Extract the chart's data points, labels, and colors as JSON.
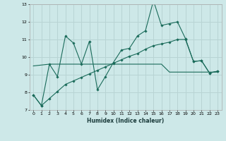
{
  "xlabel": "Humidex (Indice chaleur)",
  "xlim": [
    -0.5,
    23.5
  ],
  "ylim": [
    7,
    13
  ],
  "yticks": [
    7,
    8,
    9,
    10,
    11,
    12,
    13
  ],
  "xticks": [
    0,
    1,
    2,
    3,
    4,
    5,
    6,
    7,
    8,
    9,
    10,
    11,
    12,
    13,
    14,
    15,
    16,
    17,
    18,
    19,
    20,
    21,
    22,
    23
  ],
  "bg_color": "#cde8e8",
  "grid_color": "#b8d4d4",
  "line_color": "#1a6b5a",
  "line1_x": [
    0,
    1,
    2,
    3,
    4,
    5,
    6,
    7,
    8,
    9,
    10,
    11,
    12,
    13,
    14,
    15,
    16,
    17,
    18,
    19,
    20,
    21,
    22,
    23
  ],
  "line1_y": [
    7.85,
    7.25,
    9.6,
    8.9,
    11.2,
    10.8,
    9.6,
    10.9,
    8.15,
    8.9,
    9.7,
    10.4,
    10.5,
    11.2,
    11.5,
    13.2,
    11.8,
    11.9,
    12.0,
    11.05,
    9.75,
    9.8,
    9.1,
    9.2
  ],
  "line2_x": [
    0,
    2,
    3,
    4,
    5,
    6,
    7,
    8,
    9,
    10,
    11,
    12,
    13,
    14,
    15,
    16,
    17,
    18,
    19,
    20,
    21,
    22,
    23
  ],
  "line2_y": [
    9.5,
    9.6,
    9.6,
    9.6,
    9.6,
    9.6,
    9.6,
    9.6,
    9.6,
    9.6,
    9.6,
    9.6,
    9.6,
    9.6,
    9.6,
    9.6,
    9.15,
    9.15,
    9.15,
    9.15,
    9.15,
    9.15,
    9.15
  ],
  "line3_x": [
    0,
    1,
    2,
    3,
    4,
    5,
    6,
    7,
    8,
    9,
    10,
    11,
    12,
    13,
    14,
    15,
    16,
    17,
    18,
    19,
    20,
    21,
    22,
    23
  ],
  "line3_y": [
    7.85,
    7.25,
    7.65,
    8.05,
    8.45,
    8.65,
    8.85,
    9.05,
    9.25,
    9.45,
    9.65,
    9.85,
    10.05,
    10.2,
    10.45,
    10.65,
    10.75,
    10.85,
    11.0,
    11.0,
    9.75,
    9.8,
    9.1,
    9.2
  ]
}
